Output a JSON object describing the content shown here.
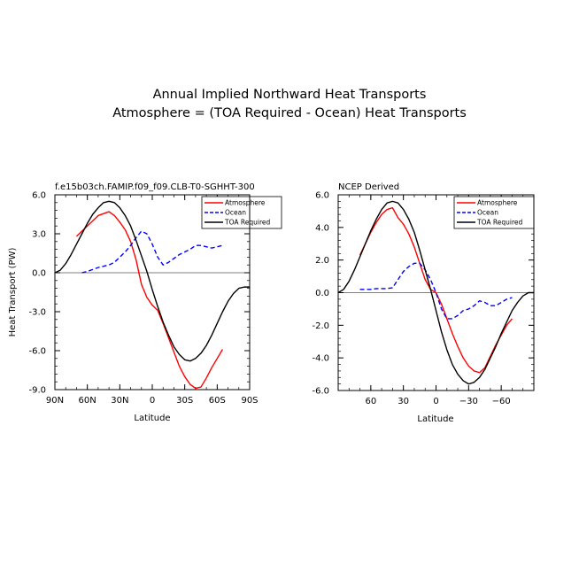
{
  "figure": {
    "title_line1": "Annual Implied Northward Heat Transports",
    "title_line2": "Atmosphere = (TOA Required - Ocean) Heat Transports"
  },
  "chart_data": [
    {
      "type": "line",
      "subtitle": "f.e15b03ch.FAMIP.f09_f09.CLB-T0-SGHHT-300",
      "xlabel": "Latitude",
      "ylabel": "Heat Transport (PW)",
      "xlim": [
        90,
        -90
      ],
      "ylim": [
        -9,
        6
      ],
      "xticks": [
        90,
        60,
        30,
        0,
        -30,
        -60,
        -90
      ],
      "xtick_labels": [
        "90N",
        "60N",
        "30N",
        "0",
        "30S",
        "60S",
        "90S"
      ],
      "yticks": [
        6,
        3,
        0,
        -3,
        -6,
        -9
      ],
      "ytick_labels": [
        "6.0",
        "3.0",
        "0.0",
        "-3.0",
        "-6.0",
        "-9.0"
      ],
      "grid": false,
      "zero_line": true,
      "legend_position": "top-right",
      "series": [
        {
          "name": "Atmosphere",
          "color": "#ff0000",
          "dash": "solid",
          "x": [
            70,
            60,
            50,
            40,
            35,
            30,
            25,
            20,
            15,
            10,
            5,
            0,
            -5,
            -10,
            -15,
            -20,
            -25,
            -30,
            -35,
            -40,
            -45,
            -50,
            -55,
            -60,
            -65
          ],
          "y": [
            2.8,
            3.6,
            4.4,
            4.7,
            4.4,
            3.9,
            3.3,
            2.4,
            1.0,
            -0.9,
            -1.9,
            -2.5,
            -2.9,
            -3.9,
            -5.0,
            -6.1,
            -7.2,
            -8.0,
            -8.6,
            -8.9,
            -8.8,
            -8.1,
            -7.3,
            -6.6,
            -5.9
          ]
        },
        {
          "name": "Ocean",
          "color": "#0000ff",
          "dash": "dashed",
          "x": [
            65,
            60,
            50,
            40,
            35,
            30,
            25,
            20,
            15,
            10,
            5,
            0,
            -5,
            -10,
            -15,
            -20,
            -25,
            -30,
            -35,
            -40,
            -45,
            -50,
            -55,
            -60,
            -65
          ],
          "y": [
            0.0,
            0.1,
            0.4,
            0.6,
            0.8,
            1.2,
            1.6,
            2.1,
            2.7,
            3.2,
            3.0,
            2.2,
            1.2,
            0.6,
            0.8,
            1.1,
            1.4,
            1.6,
            1.8,
            2.1,
            2.1,
            2.0,
            1.9,
            2.0,
            2.1
          ]
        },
        {
          "name": "TOA Required",
          "color": "#000000",
          "dash": "solid",
          "x": [
            90,
            85,
            80,
            75,
            70,
            65,
            60,
            55,
            50,
            45,
            40,
            35,
            30,
            25,
            20,
            15,
            10,
            5,
            0,
            -5,
            -10,
            -15,
            -20,
            -25,
            -30,
            -35,
            -40,
            -45,
            -50,
            -55,
            -60,
            -65,
            -70,
            -75,
            -80,
            -85,
            -90
          ],
          "y": [
            0.0,
            0.2,
            0.7,
            1.4,
            2.2,
            3.0,
            3.8,
            4.5,
            5.0,
            5.4,
            5.5,
            5.4,
            5.0,
            4.4,
            3.6,
            2.5,
            1.3,
            0.1,
            -1.3,
            -2.6,
            -3.8,
            -4.8,
            -5.7,
            -6.3,
            -6.7,
            -6.8,
            -6.6,
            -6.2,
            -5.6,
            -4.8,
            -3.9,
            -3.0,
            -2.2,
            -1.6,
            -1.2,
            -1.1,
            -1.1
          ]
        }
      ]
    },
    {
      "type": "line",
      "subtitle": "NCEP Derived",
      "xlabel": "Latitude",
      "ylabel": "",
      "xlim": [
        90,
        -90
      ],
      "ylim": [
        -6,
        6
      ],
      "xticks": [
        60,
        30,
        0,
        -30,
        -60
      ],
      "xtick_labels": [
        "60",
        "30",
        "0",
        "−30",
        "−60"
      ],
      "yticks": [
        6,
        4,
        2,
        0,
        -2,
        -4,
        -6
      ],
      "ytick_labels": [
        "6.0",
        "4.0",
        "2.0",
        "0.0",
        "-2.0",
        "-4.0",
        "-6.0"
      ],
      "grid": false,
      "zero_line": true,
      "legend_position": "top-right",
      "series": [
        {
          "name": "Atmosphere",
          "color": "#ff0000",
          "dash": "solid",
          "x": [
            70,
            65,
            60,
            55,
            50,
            45,
            40,
            35,
            30,
            25,
            20,
            15,
            10,
            5,
            0,
            -5,
            -10,
            -15,
            -20,
            -25,
            -30,
            -35,
            -40,
            -45,
            -50,
            -55,
            -60,
            -65,
            -70
          ],
          "y": [
            2.3,
            3.0,
            3.7,
            4.3,
            4.8,
            5.1,
            5.2,
            4.6,
            4.2,
            3.6,
            2.8,
            1.8,
            0.8,
            0.2,
            0.0,
            -0.7,
            -1.6,
            -2.5,
            -3.3,
            -4.0,
            -4.5,
            -4.8,
            -4.9,
            -4.6,
            -3.9,
            -3.2,
            -2.6,
            -2.0,
            -1.6
          ]
        },
        {
          "name": "Ocean",
          "color": "#0000ff",
          "dash": "dashed",
          "x": [
            70,
            65,
            60,
            55,
            50,
            45,
            40,
            35,
            30,
            25,
            20,
            15,
            10,
            5,
            0,
            -5,
            -10,
            -15,
            -20,
            -25,
            -30,
            -35,
            -40,
            -45,
            -50,
            -55,
            -60,
            -65,
            -70
          ],
          "y": [
            0.2,
            0.2,
            0.2,
            0.25,
            0.25,
            0.25,
            0.3,
            0.8,
            1.3,
            1.6,
            1.8,
            1.8,
            1.4,
            0.8,
            0.0,
            -1.0,
            -1.6,
            -1.6,
            -1.4,
            -1.1,
            -1.0,
            -0.8,
            -0.5,
            -0.6,
            -0.8,
            -0.8,
            -0.6,
            -0.4,
            -0.3
          ]
        },
        {
          "name": "TOA Required",
          "color": "#000000",
          "dash": "solid",
          "x": [
            90,
            85,
            80,
            75,
            70,
            65,
            60,
            55,
            50,
            45,
            40,
            35,
            30,
            25,
            20,
            15,
            10,
            5,
            0,
            -5,
            -10,
            -15,
            -20,
            -25,
            -30,
            -35,
            -40,
            -45,
            -50,
            -55,
            -60,
            -65,
            -70,
            -75,
            -80,
            -85,
            -90
          ],
          "y": [
            0.0,
            0.2,
            0.7,
            1.4,
            2.2,
            3.0,
            3.8,
            4.5,
            5.1,
            5.5,
            5.6,
            5.5,
            5.1,
            4.5,
            3.7,
            2.6,
            1.4,
            0.2,
            -1.1,
            -2.4,
            -3.5,
            -4.4,
            -5.0,
            -5.4,
            -5.6,
            -5.5,
            -5.2,
            -4.7,
            -4.0,
            -3.3,
            -2.5,
            -1.8,
            -1.1,
            -0.6,
            -0.2,
            0.0,
            0.0
          ]
        }
      ]
    }
  ]
}
